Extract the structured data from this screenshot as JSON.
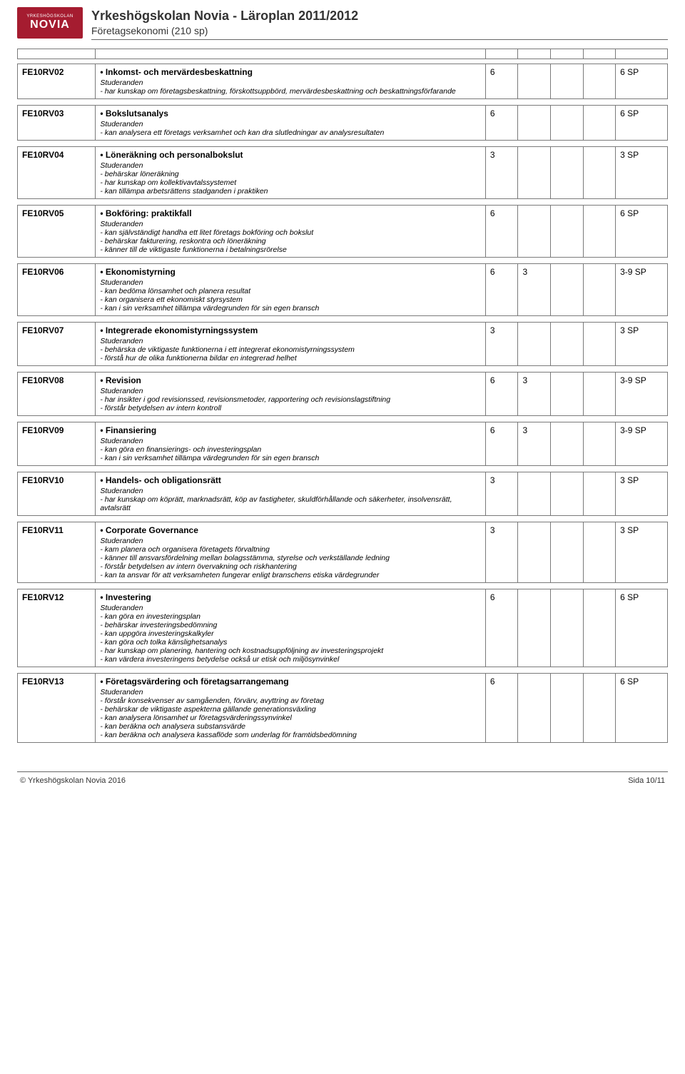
{
  "header": {
    "logo_small": "YRKESHÖGSKOLAN",
    "logo_big": "NOVIA",
    "title": "Yrkeshögskolan Novia - Läroplan 2011/2012",
    "subtitle": "Företagsekonomi (210 sp)"
  },
  "columns": {
    "code_w": "12%",
    "body_w": "60%",
    "c1_w": "5%",
    "c2_w": "5%",
    "c3_w": "5%",
    "c4_w": "5%",
    "sp_w": "8%"
  },
  "studerande": "Studeranden",
  "courses": [
    {
      "code": "FE10RV02",
      "title": "Inkomst- och mervärdesbeskattning",
      "lines": [
        "- har kunskap om företagsbeskattning, förskottsuppbörd, mervärdesbeskattning och beskattningsförfarande"
      ],
      "c1": "6",
      "c2": "",
      "c3": "",
      "c4": "",
      "sp": "6 SP"
    },
    {
      "code": "FE10RV03",
      "title": "Bokslutsanalys",
      "lines": [
        "- kan analysera ett företags verksamhet och kan dra slutledningar av analysresultaten"
      ],
      "c1": "6",
      "c2": "",
      "c3": "",
      "c4": "",
      "sp": "6 SP"
    },
    {
      "code": "FE10RV04",
      "title": "Löneräkning och personalbokslut",
      "lines": [
        "- behärskar löneräkning",
        "- har kunskap om kollektivavtalssystemet",
        "- kan tillämpa arbetsrättens stadganden i praktiken"
      ],
      "c1": "3",
      "c2": "",
      "c3": "",
      "c4": "",
      "sp": "3 SP"
    },
    {
      "code": "FE10RV05",
      "title": "Bokföring: praktikfall",
      "lines": [
        "- kan självständigt handha ett litet företags bokföring och bokslut",
        "- behärskar fakturering, reskontra och löneräkning",
        "- känner till de viktigaste funktionerna i betalningsrörelse"
      ],
      "c1": "6",
      "c2": "",
      "c3": "",
      "c4": "",
      "sp": "6 SP"
    },
    {
      "code": "FE10RV06",
      "title": "Ekonomistyrning",
      "lines": [
        "- kan bedöma lönsamhet och planera resultat",
        "- kan organisera ett ekonomiskt styrsystem",
        "- kan i sin verksamhet tillämpa värdegrunden för sin egen bransch"
      ],
      "c1": "6",
      "c2": "3",
      "c3": "",
      "c4": "",
      "sp": "3-9 SP"
    },
    {
      "code": "FE10RV07",
      "title": "Integrerade ekonomistyrningssystem",
      "lines": [
        "- behärska de viktigaste funktionerna i ett integrerat ekonomistyrningssystem",
        "- förstå hur de olika funktionerna bildar en integrerad helhet"
      ],
      "c1": "3",
      "c2": "",
      "c3": "",
      "c4": "",
      "sp": "3 SP"
    },
    {
      "code": "FE10RV08",
      "title": "Revision",
      "lines": [
        "- har insikter i god revisionssed, revisionsmetoder, rapportering och revisionslagstiftning",
        "- förstår betydelsen av intern kontroll"
      ],
      "c1": "6",
      "c2": "3",
      "c3": "",
      "c4": "",
      "sp": "3-9 SP"
    },
    {
      "code": "FE10RV09",
      "title": "Finansiering",
      "lines": [
        "- kan göra en finansierings- och investeringsplan",
        "- kan i sin verksamhet tillämpa värdegrunden för sin egen bransch"
      ],
      "c1": "6",
      "c2": "3",
      "c3": "",
      "c4": "",
      "sp": "3-9 SP"
    },
    {
      "code": "FE10RV10",
      "title": "Handels- och obligationsrätt",
      "lines": [
        "- har kunskap om köprätt, marknadsrätt, köp av fastigheter, skuldförhållande och säkerheter, insolvensrätt,",
        "avtalsrätt"
      ],
      "c1": "3",
      "c2": "",
      "c3": "",
      "c4": "",
      "sp": "3 SP"
    },
    {
      "code": "FE10RV11",
      "title": "Corporate Governance",
      "lines": [
        "- kam planera och organisera företagets förvaltning",
        "- känner till ansvarsfördelning mellan bolagsstämma, styrelse och verkställande ledning",
        "- förstår betydelsen av intern övervakning och riskhantering",
        "- kan ta ansvar för att verksamheten fungerar enligt branschens etiska värdegrunder"
      ],
      "c1": "3",
      "c2": "",
      "c3": "",
      "c4": "",
      "sp": "3 SP"
    },
    {
      "code": "FE10RV12",
      "title": "Investering",
      "lines": [
        "- kan göra en investeringsplan",
        "- behärskar investeringsbedömning",
        "- kan uppgöra investeringskalkyler",
        "- kan göra och tolka känslighetsanalys",
        "- har kunskap om planering, hantering och kostnadsuppföljning av investeringsprojekt",
        "- kan värdera investeringens betydelse också ur etisk och miljösynvinkel"
      ],
      "c1": "6",
      "c2": "",
      "c3": "",
      "c4": "",
      "sp": "6 SP"
    },
    {
      "code": "FE10RV13",
      "title": "Företagsvärdering och företagsarrangemang",
      "lines": [
        "- förstår konsekvenser av samgåenden, förvärv, avyttring av företag",
        "- behärskar de viktigaste aspekterna gällande generationsväxling",
        "- kan analysera lönsamhet ur företagsvärderingssynvinkel",
        "- kan beräkna och analysera substansvärde",
        "- kan beräkna och analysera kassaflöde som underlag för framtidsbedömning"
      ],
      "c1": "6",
      "c2": "",
      "c3": "",
      "c4": "",
      "sp": "6 SP"
    }
  ],
  "footer": {
    "left": "© Yrkeshögskolan Novia 2016",
    "right": "Sida 10/11"
  }
}
